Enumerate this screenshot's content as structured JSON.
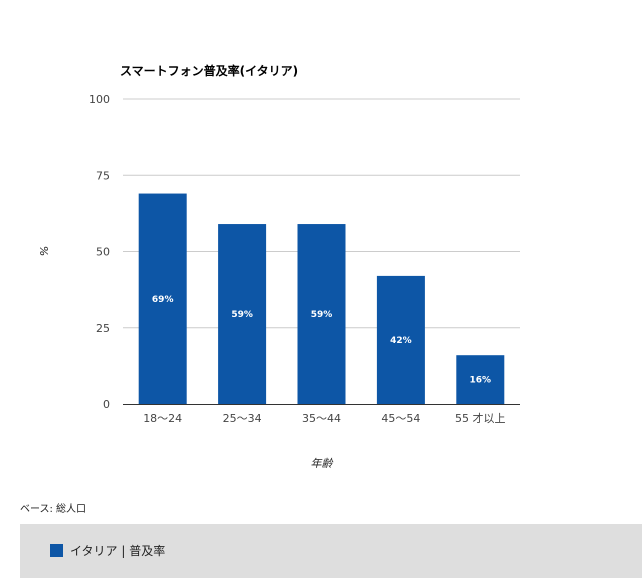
{
  "chart_data": {
    "type": "bar",
    "title": "スマートフォン普及率(イタリア)",
    "xlabel": "年齢",
    "ylabel": "%",
    "categories": [
      "18～24",
      "25～34",
      "35～44",
      "45～54",
      "55 才以上"
    ],
    "series": [
      {
        "name": "イタリア | 普及率",
        "values": [
          69,
          59,
          59,
          42,
          16
        ],
        "labels": [
          "69%",
          "59%",
          "59%",
          "42%",
          "16%"
        ],
        "color": "#0d56a6"
      }
    ],
    "ylim": [
      0,
      100
    ],
    "yticks": [
      0,
      25,
      50,
      75,
      100
    ],
    "grid": true,
    "legend_position": "bottom"
  },
  "source_note": "ベース: 総人口",
  "colors": {
    "bar": "#0d56a6",
    "grid": "#cccccc",
    "axis": "#333333",
    "legend_bg": "#dedede"
  }
}
